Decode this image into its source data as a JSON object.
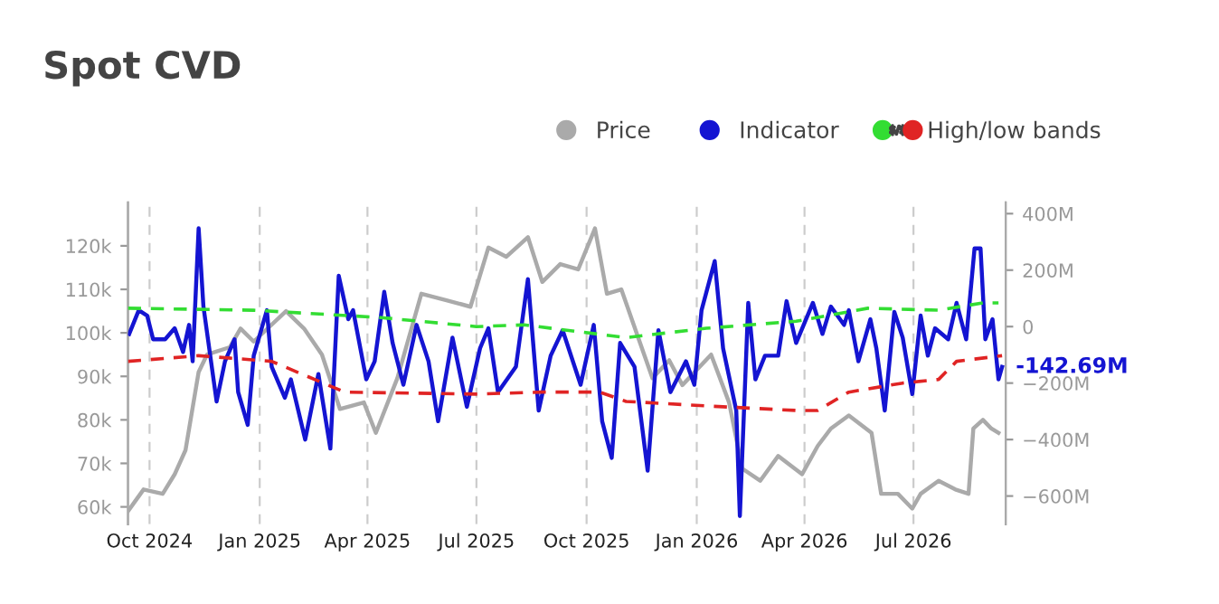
{
  "chart_data": {
    "type": "line",
    "title": "Spot CVD",
    "xlim": [
      "2024-09-13",
      "2026-09-16"
    ],
    "xticks": [
      {
        "value": "2024-10-01",
        "label": "Oct 2024"
      },
      {
        "value": "2025-01-01",
        "label": "Jan 2025"
      },
      {
        "value": "2025-04-01",
        "label": "Apr 2025"
      },
      {
        "value": "2025-07-01",
        "label": "Jul 2025"
      },
      {
        "value": "2025-10-01",
        "label": "Oct 2025"
      },
      {
        "value": "2026-01-01",
        "label": "Jan 2026"
      },
      {
        "value": "2026-04-01",
        "label": "Apr 2026"
      },
      {
        "value": "2026-07-01",
        "label": "Jul 2026"
      }
    ],
    "ylim": [
      56,
      130
    ],
    "yticks": [
      {
        "value": 60,
        "label": "60k"
      },
      {
        "value": 70,
        "label": "70k"
      },
      {
        "value": 80,
        "label": "80k"
      },
      {
        "value": 90,
        "label": "90k"
      },
      {
        "value": 100,
        "label": "100k"
      },
      {
        "value": 110,
        "label": "110k"
      },
      {
        "value": 120,
        "label": "120k"
      }
    ],
    "y2lim": [
      -700,
      440
    ],
    "y2ticks": [
      {
        "value": -600,
        "label": "−600M"
      },
      {
        "value": -400,
        "label": "−400M"
      },
      {
        "value": -200,
        "label": "−200M"
      },
      0,
      {
        "value": 200,
        "label": "200M"
      },
      {
        "value": 400,
        "label": "400M"
      }
    ],
    "grid": "x",
    "legend": "top right",
    "marker": "none",
    "series": [
      {
        "name": "Price",
        "color": "#aaaaaa",
        "line_style": "solid",
        "x": [
          "2024-09-13",
          "2024-09-26",
          "2024-10-12",
          "2024-10-22",
          "2024-10-31",
          "2024-11-11",
          "2024-11-18",
          "2024-12-07",
          "2024-12-16",
          "2024-12-27",
          "2025-01-23",
          "2025-02-07",
          "2025-02-22",
          "2025-03-09",
          "2025-03-29",
          "2025-04-08",
          "2025-04-26",
          "2025-05-16",
          "2025-06-06",
          "2025-06-26",
          "2025-07-11",
          "2025-07-26",
          "2025-08-13",
          "2025-08-25",
          "2025-09-09",
          "2025-09-24",
          "2025-10-08",
          "2025-10-18",
          "2025-10-30",
          "2025-11-13",
          "2025-11-25",
          "2025-12-09",
          "2025-12-20",
          "2026-01-13",
          "2026-01-28",
          "2026-02-08",
          "2026-02-23",
          "2026-03-10",
          "2026-03-30",
          "2026-04-12",
          "2026-04-23",
          "2026-05-08",
          "2026-05-27",
          "2026-06-04",
          "2026-06-18",
          "2026-06-30",
          "2026-07-07",
          "2026-07-22",
          "2026-08-05",
          "2026-08-16",
          "2026-08-20",
          "2026-08-28",
          "2026-09-04",
          "2026-09-10"
        ],
        "values": [
          59,
          64,
          63,
          67.5,
          73,
          91,
          95,
          96.7,
          101,
          98,
          105,
          101,
          95,
          82.5,
          84,
          77,
          89.6,
          109,
          107.5,
          106,
          119.6,
          117.5,
          122,
          111.7,
          115.8,
          114.6,
          124,
          109,
          110,
          99,
          89.6,
          93.7,
          88,
          95,
          84,
          68.8,
          66,
          71.7,
          67.5,
          74,
          78,
          81,
          77,
          63,
          63,
          59.6,
          63,
          66,
          64,
          63,
          78,
          80,
          78,
          77
        ]
      },
      {
        "name": "Indicator",
        "color": "#1414d2",
        "line_style": "solid",
        "axis": "y2",
        "x": [
          "2024-09-14",
          "2024-09-22",
          "2024-09-29",
          "2024-10-04",
          "2024-10-14",
          "2024-10-22",
          "2024-10-29",
          "2024-11-03",
          "2024-11-06",
          "2024-11-11",
          "2024-11-15",
          "2024-11-26",
          "2024-12-03",
          "2024-12-11",
          "2024-12-14",
          "2024-12-22",
          "2024-12-27",
          "2025-01-07",
          "2025-01-11",
          "2025-01-22",
          "2025-01-27",
          "2025-02-08",
          "2025-02-19",
          "2025-03-01",
          "2025-03-08",
          "2025-03-16",
          "2025-03-20",
          "2025-03-31",
          "2025-04-07",
          "2025-04-15",
          "2025-04-22",
          "2025-05-01",
          "2025-05-12",
          "2025-05-22",
          "2025-05-30",
          "2025-06-11",
          "2025-06-23",
          "2025-07-04",
          "2025-07-11",
          "2025-07-19",
          "2025-08-03",
          "2025-08-13",
          "2025-08-22",
          "2025-09-01",
          "2025-09-11",
          "2025-09-26",
          "2025-10-07",
          "2025-10-14",
          "2025-10-22",
          "2025-10-29",
          "2025-11-10",
          "2025-11-21",
          "2025-11-30",
          "2025-12-10",
          "2025-12-23",
          "2025-12-30",
          "2026-01-05",
          "2026-01-16",
          "2026-01-23",
          "2026-02-03",
          "2026-02-06",
          "2026-02-13",
          "2026-02-19",
          "2026-02-27",
          "2026-03-10",
          "2026-03-17",
          "2026-03-25",
          "2026-04-08",
          "2026-04-16",
          "2026-04-23",
          "2026-05-04",
          "2026-05-08",
          "2026-05-16",
          "2026-05-26",
          "2026-05-31",
          "2026-06-07",
          "2026-06-15",
          "2026-06-22",
          "2026-06-30",
          "2026-07-07",
          "2026-07-13",
          "2026-07-19",
          "2026-07-30",
          "2026-08-06",
          "2026-08-14",
          "2026-08-21",
          "2026-08-26",
          "2026-08-30",
          "2026-09-05",
          "2026-09-10",
          "2026-09-13"
        ],
        "values": [
          -26,
          58,
          39,
          -45,
          -45,
          -6,
          -90,
          6,
          -123,
          348,
          71,
          -265,
          -123,
          -45,
          -232,
          -348,
          -103,
          58,
          -142,
          -252,
          -187,
          -400,
          -168,
          -432,
          180,
          26,
          58,
          -187,
          -123,
          123,
          -58,
          -206,
          6,
          -123,
          -335,
          -39,
          -284,
          -77,
          -6,
          -232,
          -142,
          168,
          -297,
          -103,
          -13,
          -206,
          6,
          -335,
          -465,
          -58,
          -142,
          -510,
          -13,
          -232,
          -123,
          -206,
          58,
          232,
          -77,
          -297,
          -671,
          84,
          -187,
          -103,
          -103,
          90,
          -58,
          84,
          -26,
          71,
          6,
          58,
          -123,
          26,
          -77,
          -297,
          52,
          -39,
          -239,
          39,
          -103,
          -6,
          -45,
          84,
          -45,
          277,
          277,
          -45,
          26,
          -187,
          -143
        ]
      },
      {
        "color": "#33dd33",
        "line_style": "dashed",
        "axis": "y2",
        "x": [
          "2024-09-13",
          "2024-12-27",
          "2025-04-12",
          "2025-07-01",
          "2025-08-10",
          "2025-11-03",
          "2026-01-09",
          "2026-03-25",
          "2026-05-24",
          "2026-07-22",
          "2026-08-28",
          "2026-09-10"
        ],
        "values": [
          65,
          58,
          32,
          0,
          6,
          -39,
          -6,
          19,
          65,
          58,
          84,
          84
        ]
      },
      {
        "name": "High/low bands",
        "color": "#e02424",
        "line_style": "dashed",
        "axis": "y2",
        "x": [
          "2024-09-13",
          "2024-11-11",
          "2025-01-11",
          "2025-03-13",
          "2025-07-01",
          "2025-08-25",
          "2025-10-12",
          "2025-11-03",
          "2026-01-23",
          "2026-03-25",
          "2026-04-12",
          "2026-05-08",
          "2026-06-22",
          "2026-07-22",
          "2026-08-06",
          "2026-09-13"
        ],
        "values": [
          -123,
          -103,
          -123,
          -232,
          -239,
          -232,
          -232,
          -265,
          -284,
          -297,
          -297,
          -232,
          -200,
          -187,
          -123,
          -103
        ]
      }
    ],
    "annotations": [
      "-142.69M"
    ]
  }
}
